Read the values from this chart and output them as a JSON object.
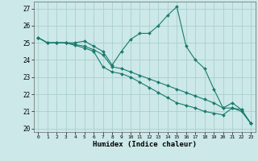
{
  "xlabel": "Humidex (Indice chaleur)",
  "background_color": "#cce8e8",
  "grid_color": "#aacfcf",
  "line_color": "#1a7a6e",
  "marker_color": "#1a7a6e",
  "xlim": [
    -0.5,
    23.5
  ],
  "ylim": [
    19.8,
    27.4
  ],
  "xticks": [
    0,
    1,
    2,
    3,
    4,
    5,
    6,
    7,
    8,
    9,
    10,
    11,
    12,
    13,
    14,
    15,
    16,
    17,
    18,
    19,
    20,
    21,
    22,
    23
  ],
  "yticks": [
    20,
    21,
    22,
    23,
    24,
    25,
    26,
    27
  ],
  "series": [
    {
      "x": [
        0,
        1,
        2,
        3,
        4,
        5,
        6,
        7,
        8,
        9,
        10,
        11,
        12,
        13,
        14,
        15,
        16,
        17,
        18,
        19,
        20,
        21,
        22,
        23
      ],
      "y": [
        25.3,
        25.0,
        25.0,
        25.0,
        25.0,
        25.1,
        24.8,
        24.5,
        23.7,
        24.5,
        25.2,
        25.55,
        25.55,
        26.0,
        26.6,
        27.1,
        24.8,
        24.0,
        23.5,
        22.3,
        21.2,
        21.5,
        21.1,
        20.3
      ]
    },
    {
      "x": [
        0,
        1,
        2,
        3,
        4,
        5,
        6,
        7,
        8,
        9,
        10,
        11,
        12,
        13,
        14,
        15,
        16,
        17,
        18,
        19,
        20,
        21,
        22,
        23
      ],
      "y": [
        25.3,
        25.0,
        25.0,
        25.0,
        24.9,
        24.8,
        24.6,
        24.3,
        23.6,
        23.5,
        23.3,
        23.1,
        22.9,
        22.7,
        22.5,
        22.3,
        22.1,
        21.9,
        21.7,
        21.5,
        21.2,
        21.2,
        21.1,
        20.3
      ]
    },
    {
      "x": [
        0,
        1,
        2,
        3,
        4,
        5,
        6,
        7,
        8,
        9,
        10,
        11,
        12,
        13,
        14,
        15,
        16,
        17,
        18,
        19,
        20,
        21,
        22,
        23
      ],
      "y": [
        25.3,
        25.0,
        25.0,
        25.0,
        24.85,
        24.7,
        24.5,
        23.6,
        23.3,
        23.2,
        23.0,
        22.7,
        22.4,
        22.1,
        21.8,
        21.5,
        21.35,
        21.2,
        21.0,
        20.9,
        20.8,
        21.2,
        21.0,
        20.3
      ]
    }
  ]
}
